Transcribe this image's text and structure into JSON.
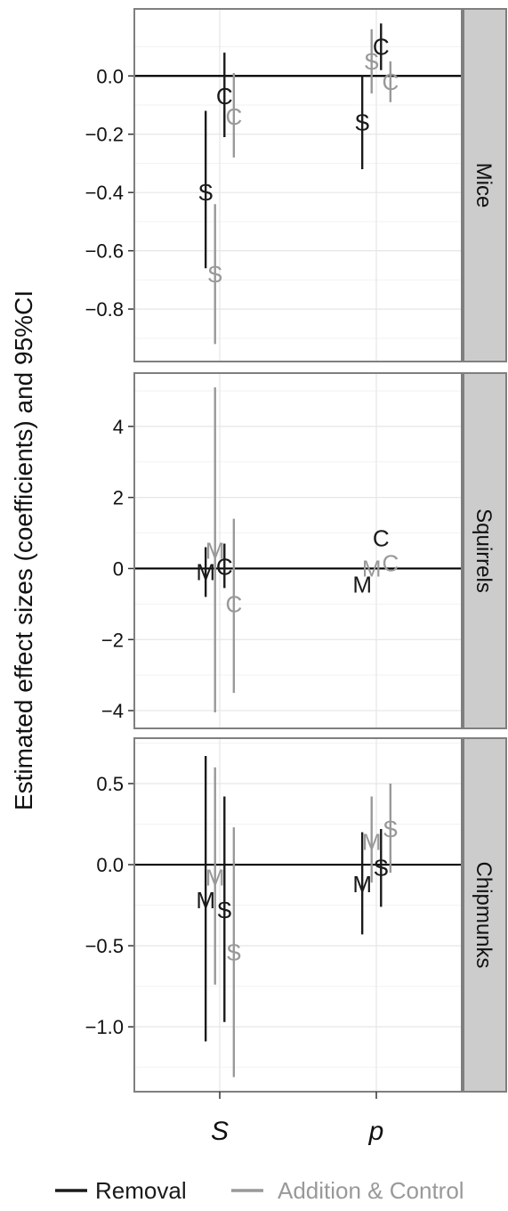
{
  "chart_data": {
    "type": "scatter",
    "ylabel": "Estimated effect sizes (coefficients) and 95%CI",
    "categories": [
      "S",
      "p"
    ],
    "legend": {
      "placement": "bottom",
      "entries": [
        {
          "name": "Removal",
          "color": "#1a1a1a"
        },
        {
          "name": "Addition & Control",
          "color": "#999999"
        }
      ]
    },
    "grid": true,
    "panels": [
      {
        "strip": "Mice",
        "ylim": [
          -0.98,
          0.23
        ],
        "yticks": [
          0.0,
          -0.2,
          -0.4,
          -0.6,
          -0.8
        ],
        "ytick_labels": [
          "0.0",
          "−0.2",
          "−0.4",
          "−0.6",
          "−0.8"
        ],
        "points": [
          {
            "category": "S",
            "series": "Removal",
            "label": "S",
            "offset": -0.09,
            "y": -0.4,
            "lo": -0.66,
            "hi": -0.12
          },
          {
            "category": "S",
            "series": "Addition & Control",
            "label": "S",
            "offset": -0.03,
            "y": -0.68,
            "lo": -0.92,
            "hi": -0.44
          },
          {
            "category": "S",
            "series": "Removal",
            "label": "C",
            "offset": 0.03,
            "y": -0.07,
            "lo": -0.21,
            "hi": 0.08
          },
          {
            "category": "S",
            "series": "Addition & Control",
            "label": "C",
            "offset": 0.09,
            "y": -0.14,
            "lo": -0.28,
            "hi": 0.01
          },
          {
            "category": "p",
            "series": "Removal",
            "label": "S",
            "offset": -0.09,
            "y": -0.16,
            "lo": -0.32,
            "hi": 0.0
          },
          {
            "category": "p",
            "series": "Addition & Control",
            "label": "S",
            "offset": -0.03,
            "y": 0.05,
            "lo": -0.06,
            "hi": 0.16
          },
          {
            "category": "p",
            "series": "Removal",
            "label": "C",
            "offset": 0.03,
            "y": 0.1,
            "lo": 0.02,
            "hi": 0.18
          },
          {
            "category": "p",
            "series": "Addition & Control",
            "label": "C",
            "offset": 0.09,
            "y": -0.02,
            "lo": -0.09,
            "hi": 0.05
          }
        ]
      },
      {
        "strip": "Squirrels",
        "ylim": [
          -4.5,
          5.5
        ],
        "yticks": [
          4,
          2,
          0,
          -2,
          -4
        ],
        "ytick_labels": [
          "4",
          "2",
          "0",
          "−2",
          "−4"
        ],
        "points": [
          {
            "category": "S",
            "series": "Removal",
            "label": "M",
            "offset": -0.09,
            "y": -0.1,
            "lo": -0.8,
            "hi": 0.6
          },
          {
            "category": "S",
            "series": "Addition & Control",
            "label": "M",
            "offset": -0.03,
            "y": 0.5,
            "lo": -4.05,
            "hi": 5.1
          },
          {
            "category": "S",
            "series": "Removal",
            "label": "C",
            "offset": 0.03,
            "y": 0.05,
            "lo": -0.55,
            "hi": 0.7
          },
          {
            "category": "S",
            "series": "Addition & Control",
            "label": "C",
            "offset": 0.09,
            "y": -1.0,
            "lo": -3.5,
            "hi": 1.4
          },
          {
            "category": "p",
            "series": "Removal",
            "label": "M",
            "offset": -0.09,
            "y": -0.45,
            "lo": -0.45,
            "hi": -0.45
          },
          {
            "category": "p",
            "series": "Addition & Control",
            "label": "M",
            "offset": -0.03,
            "y": 0.0,
            "lo": 0.0,
            "hi": 0.0
          },
          {
            "category": "p",
            "series": "Removal",
            "label": "C",
            "offset": 0.03,
            "y": 0.85,
            "lo": 0.85,
            "hi": 0.85
          },
          {
            "category": "p",
            "series": "Addition & Control",
            "label": "C",
            "offset": 0.09,
            "y": 0.15,
            "lo": 0.15,
            "hi": 0.15
          }
        ]
      },
      {
        "strip": "Chipmunks",
        "ylim": [
          -1.4,
          0.78
        ],
        "yticks": [
          0.5,
          0.0,
          -0.5,
          -1.0
        ],
        "ytick_labels": [
          "0.5",
          "0.0",
          "−0.5",
          "−1.0"
        ],
        "points": [
          {
            "category": "S",
            "series": "Removal",
            "label": "M",
            "offset": -0.09,
            "y": -0.22,
            "lo": -1.09,
            "hi": 0.67
          },
          {
            "category": "S",
            "series": "Addition & Control",
            "label": "M",
            "offset": -0.03,
            "y": -0.08,
            "lo": -0.74,
            "hi": 0.6
          },
          {
            "category": "S",
            "series": "Removal",
            "label": "S",
            "offset": 0.03,
            "y": -0.28,
            "lo": -0.97,
            "hi": 0.42
          },
          {
            "category": "S",
            "series": "Addition & Control",
            "label": "S",
            "offset": 0.09,
            "y": -0.54,
            "lo": -1.31,
            "hi": 0.23
          },
          {
            "category": "p",
            "series": "Removal",
            "label": "M",
            "offset": -0.09,
            "y": -0.12,
            "lo": -0.43,
            "hi": 0.2
          },
          {
            "category": "p",
            "series": "Addition & Control",
            "label": "M",
            "offset": -0.03,
            "y": 0.14,
            "lo": -0.11,
            "hi": 0.42
          },
          {
            "category": "p",
            "series": "Removal",
            "label": "S",
            "offset": 0.03,
            "y": -0.02,
            "lo": -0.26,
            "hi": 0.22
          },
          {
            "category": "p",
            "series": "Addition & Control",
            "label": "S",
            "offset": 0.09,
            "y": 0.22,
            "lo": -0.05,
            "hi": 0.5
          }
        ]
      }
    ]
  }
}
